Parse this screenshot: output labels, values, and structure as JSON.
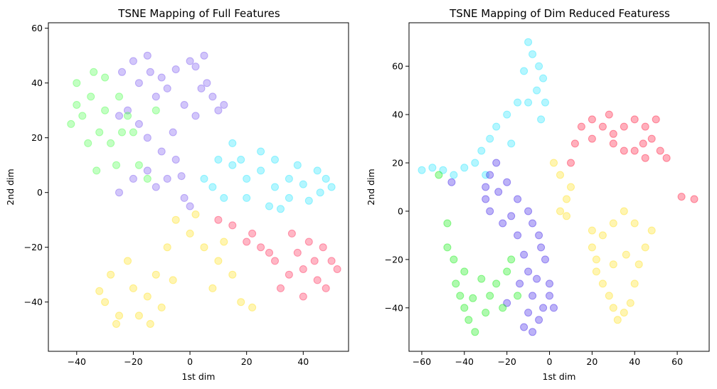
{
  "chart_data": [
    {
      "type": "scatter",
      "title": "TSNE Mapping of Full Features",
      "xlabel": "1st dim",
      "ylabel": "2nd dim",
      "xlim": [
        -50,
        56
      ],
      "ylim": [
        -58,
        62
      ],
      "xticks": [
        -40,
        -20,
        0,
        20,
        40
      ],
      "xtick_labels": [
        "−40",
        "−20",
        "0",
        "20",
        "40"
      ],
      "yticks": [
        -40,
        -20,
        0,
        20,
        40,
        60
      ],
      "ytick_labels": [
        "−40",
        "−20",
        "0",
        "20",
        "40",
        "60"
      ],
      "grid": false,
      "legend": "none",
      "series": [
        {
          "color": "#7d5cf0",
          "points": [
            [
              -20,
              48
            ],
            [
              -15,
              50
            ],
            [
              -10,
              42
            ],
            [
              -5,
              45
            ],
            [
              0,
              48
            ],
            [
              5,
              50
            ],
            [
              -18,
              40
            ],
            [
              -12,
              35
            ],
            [
              -8,
              38
            ],
            [
              -2,
              32
            ],
            [
              2,
              28
            ],
            [
              6,
              40
            ],
            [
              8,
              35
            ],
            [
              10,
              30
            ],
            [
              -22,
              30
            ],
            [
              -25,
              28
            ],
            [
              -18,
              25
            ],
            [
              -15,
              20
            ],
            [
              -10,
              15
            ],
            [
              -5,
              12
            ],
            [
              -3,
              6
            ],
            [
              -8,
              5
            ],
            [
              -12,
              2
            ],
            [
              -15,
              8
            ],
            [
              -20,
              5
            ],
            [
              -25,
              0
            ],
            [
              -2,
              -2
            ],
            [
              0,
              -5
            ],
            [
              4,
              38
            ],
            [
              12,
              32
            ],
            [
              -6,
              22
            ],
            [
              -14,
              44
            ],
            [
              -24,
              44
            ],
            [
              2,
              46
            ]
          ]
        },
        {
          "color": "#4fff4f",
          "points": [
            [
              -40,
              40
            ],
            [
              -35,
              35
            ],
            [
              -38,
              28
            ],
            [
              -42,
              25
            ],
            [
              -30,
              30
            ],
            [
              -32,
              22
            ],
            [
              -28,
              18
            ],
            [
              -25,
              35
            ],
            [
              -22,
              28
            ],
            [
              -30,
              42
            ],
            [
              -36,
              18
            ],
            [
              -20,
              22
            ],
            [
              -18,
              10
            ],
            [
              -15,
              5
            ],
            [
              -26,
              10
            ],
            [
              -33,
              8
            ],
            [
              -40,
              32
            ],
            [
              -24,
              22
            ],
            [
              -12,
              30
            ],
            [
              -34,
              44
            ]
          ]
        },
        {
          "color": "#29e6ff",
          "points": [
            [
              10,
              12
            ],
            [
              15,
              10
            ],
            [
              20,
              5
            ],
            [
              25,
              8
            ],
            [
              30,
              2
            ],
            [
              35,
              5
            ],
            [
              40,
              3
            ],
            [
              45,
              8
            ],
            [
              50,
              2
            ],
            [
              20,
              -2
            ],
            [
              28,
              -5
            ],
            [
              35,
              -2
            ],
            [
              42,
              -3
            ],
            [
              48,
              5
            ],
            [
              5,
              5
            ],
            [
              8,
              2
            ],
            [
              12,
              -2
            ],
            [
              18,
              12
            ],
            [
              30,
              12
            ],
            [
              38,
              10
            ],
            [
              46,
              0
            ],
            [
              25,
              15
            ],
            [
              15,
              18
            ],
            [
              32,
              -6
            ]
          ]
        },
        {
          "color": "#ff2f5a",
          "points": [
            [
              10,
              -10
            ],
            [
              15,
              -12
            ],
            [
              25,
              -20
            ],
            [
              30,
              -25
            ],
            [
              35,
              -30
            ],
            [
              40,
              -28
            ],
            [
              45,
              -32
            ],
            [
              50,
              -25
            ],
            [
              42,
              -18
            ],
            [
              47,
              -20
            ],
            [
              38,
              -22
            ],
            [
              32,
              -35
            ],
            [
              28,
              -22
            ],
            [
              22,
              -15
            ],
            [
              20,
              -18
            ],
            [
              48,
              -35
            ],
            [
              44,
              -25
            ],
            [
              36,
              -15
            ],
            [
              40,
              -38
            ],
            [
              52,
              -28
            ]
          ]
        },
        {
          "color": "#ffe11f",
          "points": [
            [
              -30,
              -40
            ],
            [
              -25,
              -45
            ],
            [
              -20,
              -35
            ],
            [
              -15,
              -38
            ],
            [
              -10,
              -42
            ],
            [
              -28,
              -30
            ],
            [
              -22,
              -25
            ],
            [
              -18,
              -45
            ],
            [
              -12,
              -30
            ],
            [
              -8,
              -20
            ],
            [
              -5,
              -10
            ],
            [
              0,
              -15
            ],
            [
              5,
              -20
            ],
            [
              10,
              -25
            ],
            [
              15,
              -30
            ],
            [
              18,
              -40
            ],
            [
              22,
              -42
            ],
            [
              -32,
              -36
            ],
            [
              -26,
              -48
            ],
            [
              -14,
              -48
            ],
            [
              -6,
              -32
            ],
            [
              2,
              -8
            ],
            [
              12,
              -18
            ],
            [
              8,
              -35
            ]
          ]
        }
      ]
    },
    {
      "type": "scatter",
      "title": "TSNE Mapping of Dim Reduced Featuress",
      "xlabel": "1st dim",
      "ylabel": "2nd dim",
      "xlim": [
        -66,
        75
      ],
      "ylim": [
        -58,
        78
      ],
      "xticks": [
        -60,
        -40,
        -20,
        0,
        20,
        40,
        60
      ],
      "xtick_labels": [
        "−60",
        "−40",
        "−20",
        "0",
        "20",
        "40",
        "60"
      ],
      "yticks": [
        -40,
        -20,
        0,
        20,
        40,
        60
      ],
      "ytick_labels": [
        "−40",
        "−20",
        "0",
        "20",
        "40",
        "60"
      ],
      "grid": false,
      "legend": "none",
      "series": [
        {
          "color": "#29e6ff",
          "points": [
            [
              -10,
              70
            ],
            [
              -8,
              65
            ],
            [
              -5,
              60
            ],
            [
              -3,
              55
            ],
            [
              -6,
              50
            ],
            [
              -10,
              45
            ],
            [
              -15,
              45
            ],
            [
              -20,
              40
            ],
            [
              -25,
              35
            ],
            [
              -28,
              30
            ],
            [
              -32,
              25
            ],
            [
              -35,
              20
            ],
            [
              -40,
              18
            ],
            [
              -45,
              15
            ],
            [
              -50,
              17
            ],
            [
              -55,
              18
            ],
            [
              -60,
              17
            ],
            [
              -12,
              58
            ],
            [
              -2,
              45
            ],
            [
              -4,
              38
            ],
            [
              -18,
              28
            ],
            [
              -30,
              15
            ]
          ]
        },
        {
          "color": "#3e21e8",
          "points": [
            [
              -25,
              20
            ],
            [
              -28,
              15
            ],
            [
              -30,
              10
            ],
            [
              -30,
              5
            ],
            [
              -28,
              0
            ],
            [
              -22,
              -5
            ],
            [
              -15,
              -10
            ],
            [
              -12,
              -18
            ],
            [
              -10,
              -25
            ],
            [
              -8,
              -35
            ],
            [
              -10,
              -42
            ],
            [
              -12,
              -48
            ],
            [
              -8,
              -50
            ],
            [
              -5,
              -45
            ],
            [
              -3,
              -40
            ],
            [
              0,
              -35
            ],
            [
              2,
              -40
            ],
            [
              0,
              -30
            ],
            [
              -2,
              -20
            ],
            [
              -5,
              -10
            ],
            [
              -8,
              -5
            ],
            [
              -10,
              0
            ],
            [
              -15,
              5
            ],
            [
              -20,
              12
            ],
            [
              -24,
              8
            ],
            [
              -18,
              -2
            ],
            [
              -6,
              -28
            ],
            [
              -14,
              -30
            ],
            [
              -4,
              -15
            ],
            [
              -46,
              12
            ],
            [
              -20,
              -38
            ]
          ]
        },
        {
          "color": "#17ef17",
          "points": [
            [
              -48,
              -5
            ],
            [
              -48,
              -15
            ],
            [
              -45,
              -20
            ],
            [
              -40,
              -25
            ],
            [
              -42,
              -35
            ],
            [
              -40,
              -40
            ],
            [
              -38,
              -45
            ],
            [
              -35,
              -50
            ],
            [
              -30,
              -42
            ],
            [
              -28,
              -35
            ],
            [
              -25,
              -30
            ],
            [
              -20,
              -25
            ],
            [
              -18,
              -20
            ],
            [
              -22,
              -40
            ],
            [
              -32,
              -28
            ],
            [
              -36,
              -36
            ],
            [
              -44,
              -30
            ],
            [
              -15,
              -35
            ],
            [
              -52,
              15
            ]
          ]
        },
        {
          "color": "#ff1a3e",
          "points": [
            [
              15,
              35
            ],
            [
              20,
              38
            ],
            [
              25,
              35
            ],
            [
              30,
              32
            ],
            [
              35,
              35
            ],
            [
              40,
              38
            ],
            [
              45,
              35
            ],
            [
              48,
              30
            ],
            [
              52,
              25
            ],
            [
              55,
              22
            ],
            [
              45,
              22
            ],
            [
              40,
              25
            ],
            [
              35,
              25
            ],
            [
              30,
              28
            ],
            [
              20,
              30
            ],
            [
              12,
              28
            ],
            [
              10,
              20
            ],
            [
              50,
              38
            ],
            [
              28,
              40
            ],
            [
              44,
              28
            ],
            [
              68,
              5
            ],
            [
              62,
              6
            ]
          ]
        },
        {
          "color": "#ffe11f",
          "points": [
            [
              20,
              -15
            ],
            [
              22,
              -20
            ],
            [
              22,
              -25
            ],
            [
              25,
              -30
            ],
            [
              28,
              -35
            ],
            [
              30,
              -40
            ],
            [
              32,
              -45
            ],
            [
              35,
              -42
            ],
            [
              38,
              -38
            ],
            [
              40,
              -30
            ],
            [
              42,
              -22
            ],
            [
              45,
              -15
            ],
            [
              48,
              -8
            ],
            [
              40,
              -5
            ],
            [
              35,
              0
            ],
            [
              30,
              -5
            ],
            [
              25,
              -10
            ],
            [
              20,
              -8
            ],
            [
              8,
              5
            ],
            [
              5,
              0
            ],
            [
              10,
              10
            ],
            [
              5,
              15
            ],
            [
              2,
              20
            ],
            [
              8,
              -2
            ],
            [
              36,
              -18
            ],
            [
              30,
              -22
            ]
          ]
        }
      ]
    }
  ]
}
